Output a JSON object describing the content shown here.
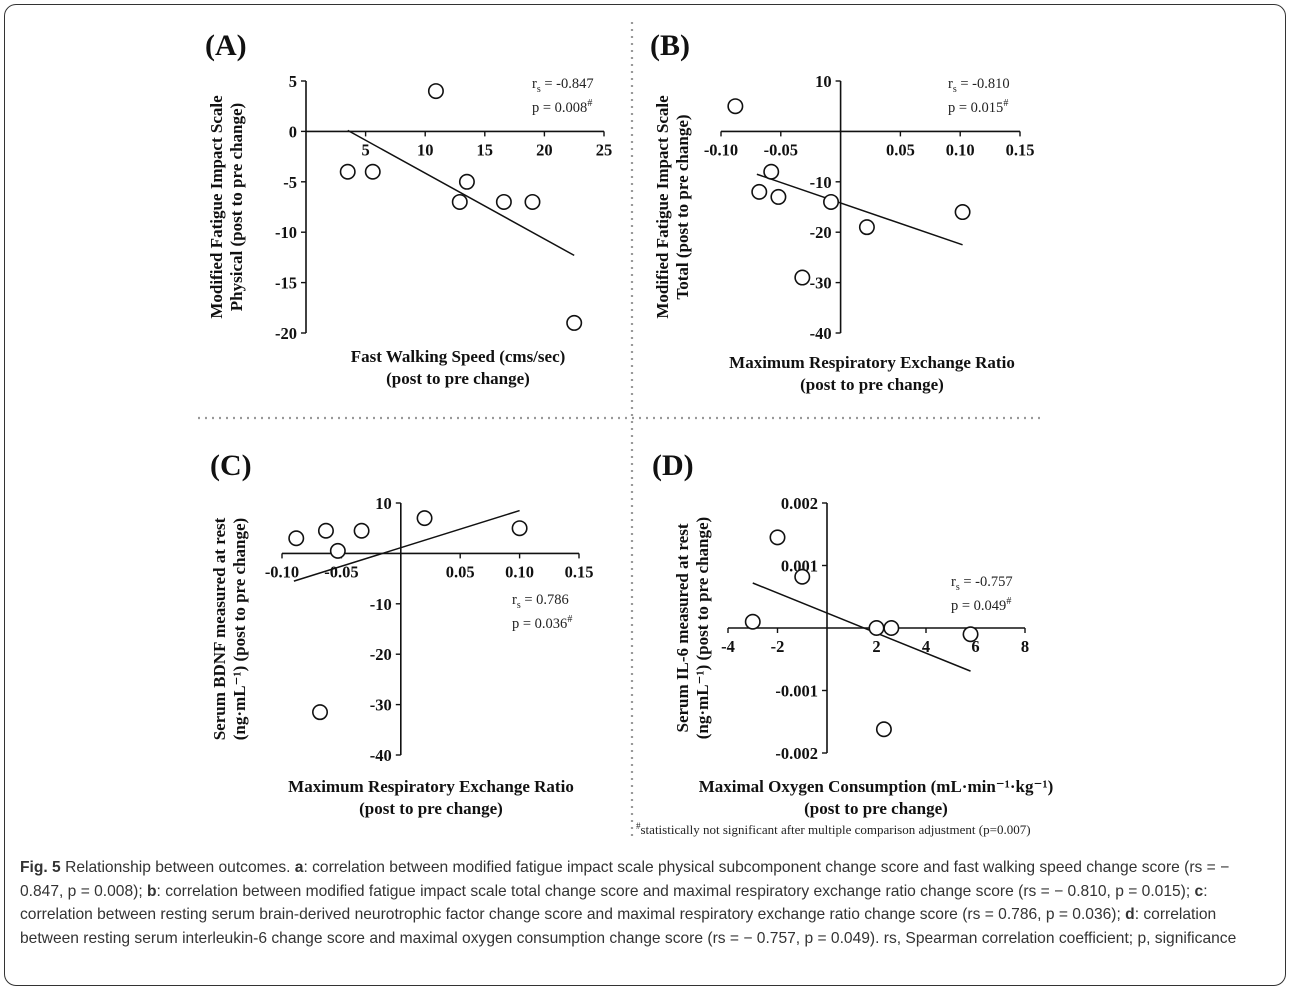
{
  "chart_data": [
    {
      "type": "scatter",
      "panel_label": "(A)",
      "ylabel_lines": [
        "Modified Fatigue Impact Scale",
        "Physical (post to pre change)"
      ],
      "xlabel_lines": [
        "Fast Walking Speed (cms/sec)",
        "(post to pre change)"
      ],
      "xlim": [
        0,
        25
      ],
      "ylim": [
        -20,
        5
      ],
      "xticks": [
        {
          "v": 5,
          "label": "5"
        },
        {
          "v": 10,
          "label": "10"
        },
        {
          "v": 15,
          "label": "15"
        },
        {
          "v": 20,
          "label": "20"
        },
        {
          "v": 25,
          "label": "25"
        }
      ],
      "yticks": [
        {
          "v": 5,
          "label": "5"
        },
        {
          "v": 0,
          "label": "0"
        },
        {
          "v": -5,
          "label": "-5"
        },
        {
          "v": -10,
          "label": "-10"
        },
        {
          "v": -15,
          "label": "-15"
        },
        {
          "v": -20,
          "label": "-20"
        }
      ],
      "points": [
        {
          "x": 3.5,
          "y": -4
        },
        {
          "x": 5.6,
          "y": -4
        },
        {
          "x": 10.9,
          "y": 4
        },
        {
          "x": 12.9,
          "y": -7
        },
        {
          "x": 13.5,
          "y": -5
        },
        {
          "x": 16.6,
          "y": -7
        },
        {
          "x": 19.0,
          "y": -7
        },
        {
          "x": 22.5,
          "y": -19
        }
      ],
      "fit_line": [
        {
          "x": 3.5,
          "y": 0.1
        },
        {
          "x": 22.5,
          "y": -12.3
        }
      ],
      "stats": {
        "rs_label": "r",
        "rs_sub": "s",
        "rs_value": " = -0.847",
        "p_text": "p = 0.008",
        "p_mark": "#"
      }
    },
    {
      "type": "scatter",
      "panel_label": "(B)",
      "ylabel_lines": [
        "Modified Fatigue Impact Scale",
        "Total (post to pre change)"
      ],
      "xlabel_lines": [
        "Maximum Respiratory Exchange Ratio",
        "(post to pre change)"
      ],
      "xlim": [
        -0.1,
        0.15
      ],
      "ylim": [
        -40,
        10
      ],
      "xticks": [
        {
          "v": -0.1,
          "label": "-0.10"
        },
        {
          "v": -0.05,
          "label": "-0.05"
        },
        {
          "v": 0.05,
          "label": "0.05"
        },
        {
          "v": 0.1,
          "label": "0.10"
        },
        {
          "v": 0.15,
          "label": "0.15"
        }
      ],
      "yticks": [
        {
          "v": 10,
          "label": "10"
        },
        {
          "v": -10,
          "label": "-10"
        },
        {
          "v": -20,
          "label": "-20"
        },
        {
          "v": -30,
          "label": "-30"
        },
        {
          "v": -40,
          "label": "-40"
        }
      ],
      "points": [
        {
          "x": -0.088,
          "y": 5
        },
        {
          "x": -0.068,
          "y": -12
        },
        {
          "x": -0.058,
          "y": -8
        },
        {
          "x": -0.052,
          "y": -13
        },
        {
          "x": -0.032,
          "y": -29
        },
        {
          "x": -0.008,
          "y": -14
        },
        {
          "x": 0.022,
          "y": -19
        },
        {
          "x": 0.102,
          "y": -16
        }
      ],
      "fit_line": [
        {
          "x": -0.07,
          "y": -8.5
        },
        {
          "x": 0.102,
          "y": -22.5
        }
      ],
      "stats": {
        "rs_label": "r",
        "rs_sub": "s",
        "rs_value": " = -0.810",
        "p_text": "p = 0.015",
        "p_mark": "#"
      }
    },
    {
      "type": "scatter",
      "panel_label": "(C)",
      "ylabel_lines": [
        "Serum BDNF measured at rest",
        "(ng·mL⁻¹) (post to pre change)"
      ],
      "xlabel_lines": [
        "Maximum Respiratory Exchange Ratio",
        "(post to pre change)"
      ],
      "xlim": [
        -0.1,
        0.15
      ],
      "ylim": [
        -40,
        10
      ],
      "xticks": [
        {
          "v": -0.1,
          "label": "-0.10"
        },
        {
          "v": -0.05,
          "label": "-0.05"
        },
        {
          "v": 0.05,
          "label": "0.05"
        },
        {
          "v": 0.1,
          "label": "0.10"
        },
        {
          "v": 0.15,
          "label": "0.15"
        }
      ],
      "yticks": [
        {
          "v": 10,
          "label": "10"
        },
        {
          "v": -10,
          "label": "-10"
        },
        {
          "v": -20,
          "label": "-20"
        },
        {
          "v": -30,
          "label": "-30"
        },
        {
          "v": -40,
          "label": "-40"
        }
      ],
      "points": [
        {
          "x": -0.088,
          "y": 3
        },
        {
          "x": -0.063,
          "y": 4.5
        },
        {
          "x": -0.053,
          "y": 0.5
        },
        {
          "x": -0.033,
          "y": 4.5
        },
        {
          "x": 0.02,
          "y": 7
        },
        {
          "x": 0.1,
          "y": 5
        },
        {
          "x": -0.068,
          "y": -31.5
        }
      ],
      "fit_line": [
        {
          "x": -0.09,
          "y": -5.5
        },
        {
          "x": 0.1,
          "y": 8.5
        }
      ],
      "stats": {
        "rs_label": "r",
        "rs_sub": "s",
        "rs_value": " = 0.786",
        "p_text": "p = 0.036",
        "p_mark": "#"
      }
    },
    {
      "type": "scatter",
      "panel_label": "(D)",
      "ylabel_lines": [
        "Serum IL-6 measured at rest",
        "(ng·mL⁻¹) (post to pre change)"
      ],
      "xlabel_lines": [
        "Maximal Oxygen Consumption (mL·min⁻¹·kg⁻¹)",
        "(post to pre change)"
      ],
      "xlim": [
        -4,
        8
      ],
      "ylim": [
        -0.002,
        0.002
      ],
      "xticks": [
        {
          "v": -4,
          "label": "-4"
        },
        {
          "v": -2,
          "label": "-2"
        },
        {
          "v": 2,
          "label": "2"
        },
        {
          "v": 4,
          "label": "4"
        },
        {
          "v": 6,
          "label": "6"
        },
        {
          "v": 8,
          "label": "8"
        }
      ],
      "yticks": [
        {
          "v": 0.002,
          "label": "0.002"
        },
        {
          "v": 0.001,
          "label": "0.001"
        },
        {
          "v": -0.001,
          "label": "-0.001"
        },
        {
          "v": -0.002,
          "label": "-0.002"
        }
      ],
      "points": [
        {
          "x": -3,
          "y": 0.0001
        },
        {
          "x": -2,
          "y": 0.00145
        },
        {
          "x": -1,
          "y": 0.00082
        },
        {
          "x": 2,
          "y": 0.0
        },
        {
          "x": 2.6,
          "y": 0.0
        },
        {
          "x": 5.8,
          "y": -0.0001
        },
        {
          "x": 2.3,
          "y": -0.00162
        }
      ],
      "fit_line": [
        {
          "x": -3,
          "y": 0.00072
        },
        {
          "x": 5.8,
          "y": -0.00069
        }
      ],
      "stats": {
        "rs_label": "r",
        "rs_sub": "s",
        "rs_value": " = -0.757",
        "p_text": "p = 0.049",
        "p_mark": "#"
      }
    }
  ],
  "footnote": {
    "mark": "#",
    "text": "statistically not significant after multiple comparison adjustment (p=0.007)"
  },
  "caption": {
    "lead": "Fig. 5",
    "intro": " Relationship between outcomes. ",
    "parts": [
      {
        "key": "a",
        "text": ": correlation between modified fatigue impact scale physical subcomponent change score and fast walking speed change score ",
        "stats": "(rs = − 0.847, p = 0.008); "
      },
      {
        "key": "b",
        "text": ": correlation between modified fatigue impact scale total change score and maximal respiratory exchange ratio change score ",
        "stats": "(rs = − 0.810, p = 0.015); "
      },
      {
        "key": "c",
        "text": ": correlation between resting serum brain-derived neurotrophic factor change score and maximal respiratory exchange ratio change score ",
        "stats": "(rs = 0.786, p = 0.036); "
      },
      {
        "key": "d",
        "text": ": correlation between resting serum interleukin-6 change score and maximal oxygen consumption change score ",
        "stats": "(rs = − 0.757, p = 0.049). "
      }
    ],
    "legend": "rs, Spearman correlation coefficient; p, significance"
  }
}
